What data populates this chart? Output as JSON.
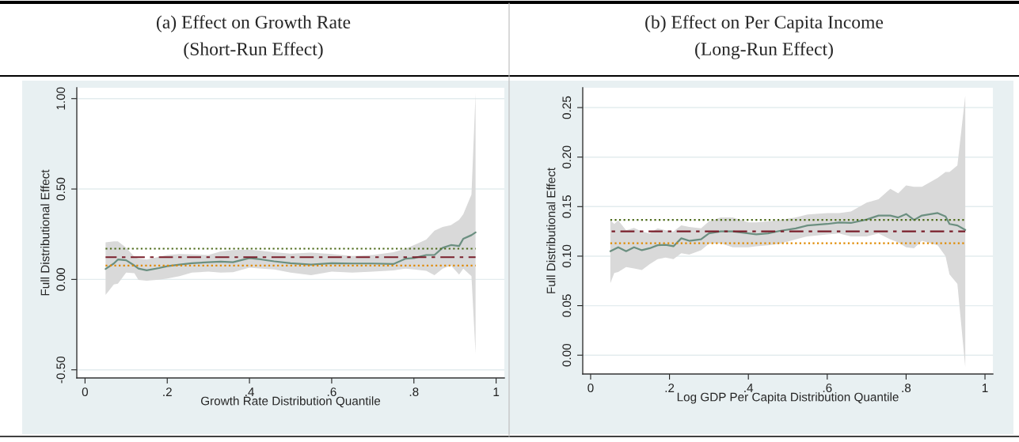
{
  "chart_data": [
    {
      "type": "line",
      "title": "(a) Effect on Growth Rate",
      "subtitle": "(Short-Run Effect)",
      "xlabel": "Growth Rate Distribution Quantile",
      "ylabel": "Full Distributional Effect",
      "xlim": [
        -0.02,
        1.02
      ],
      "ylim": [
        -0.545,
        1.06
      ],
      "xticks": [
        0,
        {
          "value": 0.2,
          "label": ".2"
        },
        {
          "value": 0.4,
          "label": ".4"
        },
        {
          "value": 0.6,
          "label": ".6"
        },
        {
          "value": 0.8,
          "label": ".8"
        },
        1
      ],
      "yticks": [
        {
          "value": -0.5,
          "label": "-0.50"
        },
        {
          "value": 0.0,
          "label": "0.00"
        },
        {
          "value": 0.5,
          "label": "0.50"
        },
        {
          "value": 1.0,
          "label": "1.00"
        }
      ],
      "grid": "y",
      "series": [
        {
          "color": "#6b8f80",
          "line_style": "solid",
          "x": [
            0.05,
            0.07,
            0.08,
            0.1,
            0.12,
            0.13,
            0.15,
            0.18,
            0.2,
            0.23,
            0.26,
            0.3,
            0.33,
            0.36,
            0.4,
            0.43,
            0.46,
            0.5,
            0.55,
            0.6,
            0.65,
            0.7,
            0.75,
            0.78,
            0.8,
            0.83,
            0.85,
            0.87,
            0.89,
            0.91,
            0.92,
            0.94,
            0.95
          ],
          "values": [
            0.058,
            0.088,
            0.11,
            0.106,
            0.077,
            0.06,
            0.05,
            0.063,
            0.073,
            0.082,
            0.09,
            0.095,
            0.098,
            0.095,
            0.118,
            0.11,
            0.1,
            0.09,
            0.082,
            0.09,
            0.088,
            0.088,
            0.085,
            0.115,
            0.118,
            0.135,
            0.135,
            0.175,
            0.19,
            0.185,
            0.225,
            0.245,
            0.26
          ],
          "lower": [
            -0.086,
            -0.028,
            -0.023,
            0.038,
            0.035,
            -0.003,
            -0.007,
            -0.002,
            0.005,
            0.018,
            0.038,
            0.043,
            0.038,
            0.04,
            0.065,
            0.06,
            0.055,
            0.038,
            0.023,
            0.043,
            0.038,
            0.043,
            0.05,
            0.06,
            0.055,
            0.048,
            0.023,
            0.06,
            0.077,
            0.027,
            0.06,
            0.018,
            -0.413
          ],
          "upper": [
            0.205,
            0.21,
            0.21,
            0.175,
            0.125,
            0.115,
            0.11,
            0.125,
            0.135,
            0.14,
            0.138,
            0.135,
            0.155,
            0.162,
            0.165,
            0.158,
            0.15,
            0.143,
            0.148,
            0.14,
            0.13,
            0.135,
            0.15,
            0.17,
            0.19,
            0.22,
            0.27,
            0.29,
            0.3,
            0.33,
            0.36,
            0.47,
            1.03
          ]
        },
        {
          "color": "#4d6b1a",
          "line_style": "dotted",
          "x": [
            0.05,
            0.95
          ],
          "values": [
            0.17,
            0.17
          ]
        },
        {
          "color": "#7a1f2b",
          "line_style": "dashed",
          "x": [
            0.05,
            0.95
          ],
          "values": [
            0.123,
            0.123
          ]
        },
        {
          "color": "#e08a00",
          "line_style": "dotted",
          "x": [
            0.05,
            0.95
          ],
          "values": [
            0.077,
            0.077
          ]
        }
      ]
    },
    {
      "type": "line",
      "title": "(b) Effect on Per Capita Income",
      "subtitle": "(Long-Run Effect)",
      "xlabel": "Log GDP Per Capita Distribution Quantile",
      "ylabel": "Full Distributional Effect",
      "xlim": [
        -0.02,
        1.02
      ],
      "ylim": [
        -0.019,
        0.27
      ],
      "xticks": [
        0,
        {
          "value": 0.2,
          "label": ".2"
        },
        {
          "value": 0.4,
          "label": ".4"
        },
        {
          "value": 0.6,
          "label": ".6"
        },
        {
          "value": 0.8,
          "label": ".8"
        },
        1
      ],
      "yticks": [
        {
          "value": 0.0,
          "label": "0.00"
        },
        {
          "value": 0.05,
          "label": "0.05"
        },
        {
          "value": 0.1,
          "label": "0.10"
        },
        {
          "value": 0.15,
          "label": "0.15"
        },
        {
          "value": 0.2,
          "label": "0.20"
        },
        {
          "value": 0.25,
          "label": "0.25"
        }
      ],
      "grid": "y",
      "series": [
        {
          "color": "#6b8f80",
          "line_style": "solid",
          "x": [
            0.05,
            0.06,
            0.07,
            0.09,
            0.11,
            0.13,
            0.15,
            0.17,
            0.19,
            0.21,
            0.23,
            0.25,
            0.28,
            0.3,
            0.33,
            0.36,
            0.4,
            0.42,
            0.45,
            0.48,
            0.52,
            0.55,
            0.6,
            0.63,
            0.66,
            0.7,
            0.73,
            0.76,
            0.78,
            0.8,
            0.82,
            0.84,
            0.88,
            0.9,
            0.91,
            0.93,
            0.95
          ],
          "values": [
            0.105,
            0.107,
            0.109,
            0.105,
            0.109,
            0.106,
            0.108,
            0.111,
            0.1115,
            0.11,
            0.118,
            0.1155,
            0.117,
            0.123,
            0.125,
            0.125,
            0.123,
            0.122,
            0.123,
            0.1255,
            0.128,
            0.131,
            0.1325,
            0.134,
            0.1335,
            0.137,
            0.141,
            0.141,
            0.139,
            0.1425,
            0.1365,
            0.141,
            0.1435,
            0.14,
            0.1325,
            0.131,
            0.1265
          ],
          "lower": [
            0.0727,
            0.083,
            0.084,
            0.089,
            0.0875,
            0.086,
            0.092,
            0.097,
            0.0985,
            0.097,
            0.103,
            0.1015,
            0.106,
            0.1125,
            0.113,
            0.109,
            0.109,
            0.11,
            0.111,
            0.1125,
            0.117,
            0.12,
            0.122,
            0.123,
            0.12,
            0.12,
            0.123,
            0.117,
            0.114,
            0.109,
            0.108,
            0.1155,
            0.111,
            0.1,
            0.0815,
            0.072,
            -0.012
          ],
          "upper": [
            0.136,
            0.1325,
            0.136,
            0.126,
            0.1285,
            0.125,
            0.123,
            0.128,
            0.126,
            0.125,
            0.131,
            0.1295,
            0.128,
            0.135,
            0.139,
            0.139,
            0.134,
            0.134,
            0.135,
            0.1365,
            0.139,
            0.142,
            0.1435,
            0.1435,
            0.145,
            0.154,
            0.1575,
            0.168,
            0.1635,
            0.1715,
            0.17,
            0.17,
            0.179,
            0.185,
            0.185,
            0.1915,
            0.262
          ]
        },
        {
          "color": "#4d6b1a",
          "line_style": "dotted",
          "x": [
            0.05,
            0.95
          ],
          "values": [
            0.1365,
            0.1365
          ]
        },
        {
          "color": "#7a1f2b",
          "line_style": "dashed",
          "x": [
            0.05,
            0.95
          ],
          "values": [
            0.125,
            0.125
          ]
        },
        {
          "color": "#e08a00",
          "line_style": "dotted",
          "x": [
            0.05,
            0.95
          ],
          "values": [
            0.113,
            0.113
          ]
        }
      ]
    }
  ]
}
